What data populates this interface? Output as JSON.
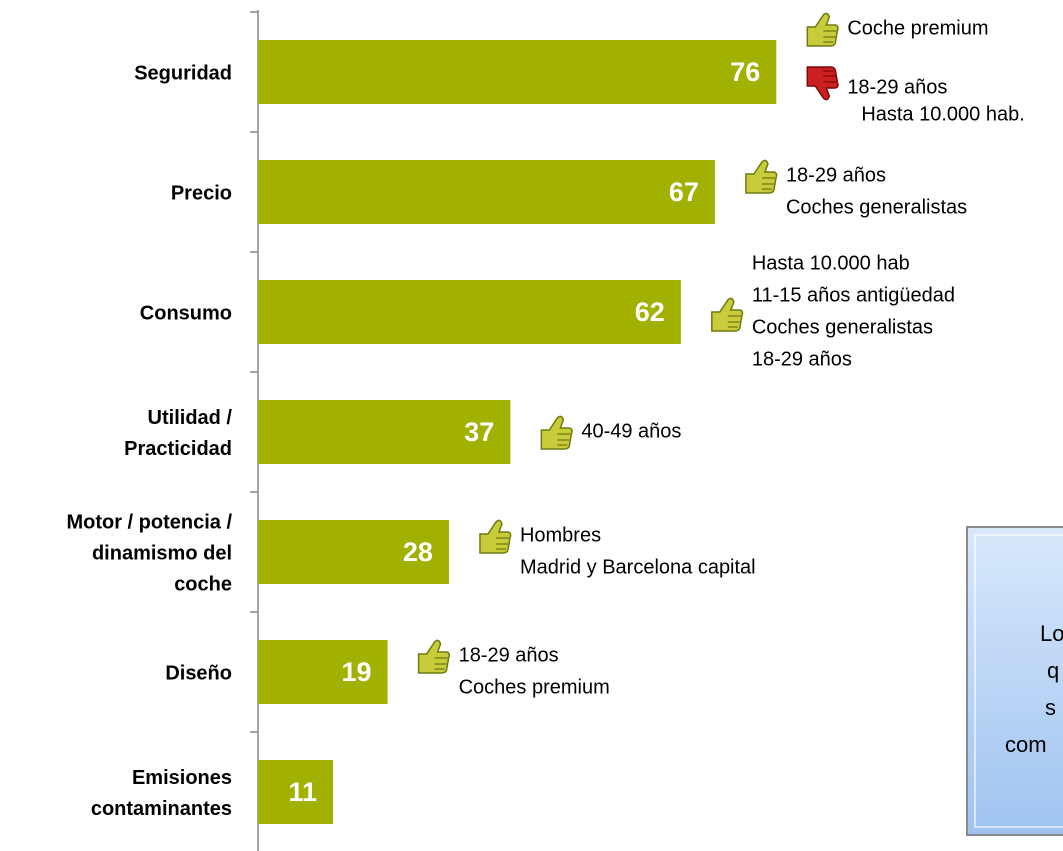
{
  "chart_data": {
    "type": "bar",
    "orientation": "horizontal",
    "color": "#a2b000",
    "categories": [
      [
        "Seguridad"
      ],
      [
        "Precio"
      ],
      [
        "Consumo"
      ],
      [
        "Utilidad /",
        "Practicidad"
      ],
      [
        "Motor / potencia /",
        "dinamismo del",
        "coche"
      ],
      [
        "Diseño"
      ],
      [
        "Emisiones",
        "contaminantes"
      ]
    ],
    "values": [
      76,
      67,
      62,
      37,
      28,
      19,
      11
    ],
    "notes": [
      [
        {
          "icon": "up",
          "lines": [
            "Coche premium"
          ]
        },
        {
          "icon": "down",
          "lines": [
            "18-29 años",
            "Hasta 10.000 hab."
          ]
        }
      ],
      [
        {
          "icon": "up",
          "lines": [
            "18-29 años",
            "Coches generalistas"
          ]
        }
      ],
      [
        {
          "icon": "up",
          "lines": [
            "Hasta 10.000 hab",
            "11-15 años antigüedad",
            "Coches generalistas",
            "18-29 años"
          ]
        }
      ],
      [
        {
          "icon": "up",
          "lines": [
            "40-49 años"
          ]
        }
      ],
      [
        {
          "icon": "up",
          "lines": [
            "Hombres",
            "Madrid y Barcelona capital"
          ]
        }
      ],
      [
        {
          "icon": "up",
          "lines": [
            "18-29 años",
            "Coches premium"
          ]
        }
      ],
      []
    ],
    "box": {
      "lines": [
        "Lo",
        "q",
        "s",
        "com"
      ]
    }
  }
}
